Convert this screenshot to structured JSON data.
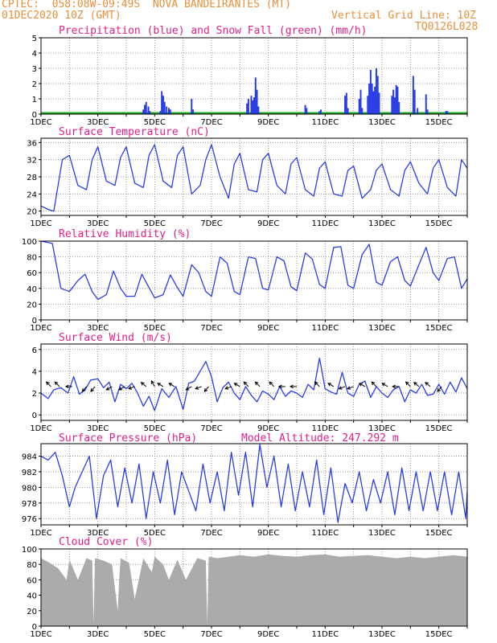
{
  "header": {
    "line1": "CPTEC:  058:08W-09:49S  NOVA BANDEIRANTES (MT)",
    "line2": "01DEC2020 10Z (GMT)",
    "grid_note": "Vertical Grid Line: 10Z",
    "code": "TQ0126L028"
  },
  "colors": {
    "header_text": "#e8903a",
    "panel_title": "#e0208a",
    "series_blue": "#2a3ee8",
    "snow_green": "#1fa81f",
    "cloud_gray": "#ababab",
    "grid": "#808080"
  },
  "x_tick_labels": [
    "1DEC",
    "3DEC",
    "5DEC",
    "7DEC",
    "9DEC",
    "11DEC",
    "13DEC",
    "15DEC"
  ],
  "x_tick_days": [
    1,
    3,
    5,
    7,
    9,
    11,
    13,
    15
  ],
  "chart_data": [
    {
      "type": "bar",
      "title": "Precipitation (blue) and Snow Fall (green) (mm/h)",
      "ylim": [
        0,
        5
      ],
      "yticks": [
        0,
        1,
        2,
        3,
        4,
        5
      ],
      "xlim_days": [
        1,
        16
      ],
      "series": [
        {
          "name": "Precipitation",
          "color": "blue",
          "points": [
            [
              4.6,
              0.3
            ],
            [
              4.65,
              0.6
            ],
            [
              4.7,
              0.8
            ],
            [
              4.78,
              0.5
            ],
            [
              4.83,
              0.2
            ],
            [
              5.2,
              0.2
            ],
            [
              5.25,
              1.5
            ],
            [
              5.3,
              1.2
            ],
            [
              5.35,
              0.8
            ],
            [
              5.42,
              0.5
            ],
            [
              5.5,
              0.4
            ],
            [
              5.55,
              0.3
            ],
            [
              6.3,
              1.0
            ],
            [
              6.35,
              0.3
            ],
            [
              8.25,
              0.7
            ],
            [
              8.3,
              1.0
            ],
            [
              8.4,
              1.2
            ],
            [
              8.45,
              0.9
            ],
            [
              8.5,
              1.1
            ],
            [
              8.55,
              2.4
            ],
            [
              8.6,
              1.6
            ],
            [
              8.65,
              0.5
            ],
            [
              10.3,
              0.6
            ],
            [
              10.35,
              0.4
            ],
            [
              10.8,
              0.2
            ],
            [
              10.85,
              0.3
            ],
            [
              11.7,
              1.2
            ],
            [
              11.75,
              1.4
            ],
            [
              11.8,
              0.4
            ],
            [
              12.2,
              1.0
            ],
            [
              12.25,
              1.6
            ],
            [
              12.3,
              0.4
            ],
            [
              12.5,
              1.2
            ],
            [
              12.55,
              2.0
            ],
            [
              12.6,
              2.9
            ],
            [
              12.65,
              2.0
            ],
            [
              12.7,
              1.5
            ],
            [
              12.75,
              1.8
            ],
            [
              12.8,
              3.0
            ],
            [
              12.85,
              2.5
            ],
            [
              12.9,
              1.4
            ],
            [
              13.35,
              1.2
            ],
            [
              13.4,
              1.6
            ],
            [
              13.45,
              1.1
            ],
            [
              13.5,
              1.9
            ],
            [
              13.55,
              1.8
            ],
            [
              13.6,
              0.8
            ],
            [
              14.1,
              2.5
            ],
            [
              14.15,
              1.6
            ],
            [
              14.25,
              0.4
            ],
            [
              14.55,
              1.3
            ],
            [
              14.6,
              0.3
            ],
            [
              15.25,
              0.2
            ],
            [
              15.3,
              0.2
            ]
          ]
        },
        {
          "name": "Snow Fall",
          "color": "green",
          "values": "0 throughout"
        }
      ]
    },
    {
      "type": "line",
      "title": "Surface Temperature (nC)",
      "ylim": [
        19,
        37
      ],
      "yticks": [
        20,
        24,
        28,
        32,
        36
      ],
      "x_days": [
        1.0,
        1.25,
        1.45,
        1.75,
        2.0,
        2.3,
        2.6,
        2.8,
        3.0,
        3.3,
        3.6,
        3.8,
        4.0,
        4.3,
        4.6,
        4.8,
        5.0,
        5.3,
        5.6,
        5.8,
        6.0,
        6.3,
        6.6,
        6.8,
        7.0,
        7.3,
        7.6,
        7.8,
        8.0,
        8.3,
        8.6,
        8.8,
        9.0,
        9.3,
        9.6,
        9.8,
        10.0,
        10.3,
        10.6,
        10.8,
        11.0,
        11.3,
        11.6,
        11.8,
        12.0,
        12.3,
        12.6,
        12.8,
        13.0,
        13.3,
        13.6,
        13.8,
        14.0,
        14.3,
        14.6,
        14.8,
        15.0,
        15.3,
        15.6,
        15.8,
        16.0
      ],
      "y": [
        21.2,
        20.4,
        20.0,
        32.0,
        33.0,
        26.0,
        25.0,
        32.0,
        35.0,
        27.0,
        26.0,
        32.5,
        35.0,
        26.5,
        25.5,
        33.0,
        35.5,
        27.0,
        25.5,
        33.0,
        35.0,
        24.0,
        26.0,
        32.0,
        35.5,
        28.0,
        23.0,
        31.0,
        33.5,
        25.0,
        24.5,
        32.0,
        33.5,
        26.0,
        24.0,
        31.0,
        32.5,
        25.0,
        23.5,
        30.0,
        31.5,
        24.0,
        23.5,
        29.5,
        30.5,
        23.0,
        25.0,
        29.5,
        31.0,
        25.0,
        23.5,
        29.5,
        31.5,
        26.5,
        24.0,
        30.0,
        32.0,
        25.5,
        23.5,
        32.0,
        30.0
      ]
    },
    {
      "type": "line",
      "title": "Relative Humidity (%)",
      "ylim": [
        0,
        100
      ],
      "yticks": [
        0,
        20,
        40,
        60,
        80,
        100
      ],
      "x_days": [
        1.0,
        1.4,
        1.7,
        2.0,
        2.3,
        2.55,
        2.8,
        3.0,
        3.3,
        3.55,
        3.8,
        4.0,
        4.3,
        4.55,
        4.8,
        5.0,
        5.3,
        5.55,
        5.8,
        6.0,
        6.3,
        6.55,
        6.8,
        7.0,
        7.3,
        7.55,
        7.8,
        8.0,
        8.3,
        8.55,
        8.8,
        9.0,
        9.3,
        9.55,
        9.8,
        10.0,
        10.3,
        10.55,
        10.8,
        11.0,
        11.3,
        11.55,
        11.8,
        12.0,
        12.3,
        12.55,
        12.8,
        13.0,
        13.3,
        13.55,
        13.8,
        14.0,
        14.3,
        14.55,
        14.8,
        15.0,
        15.3,
        15.55,
        15.8,
        16.0
      ],
      "y": [
        100,
        97,
        40,
        36,
        50,
        58,
        36,
        26,
        32,
        62,
        40,
        30,
        30,
        58,
        41,
        28,
        32,
        57,
        41,
        30,
        70,
        60,
        36,
        30,
        80,
        72,
        36,
        32,
        80,
        78,
        40,
        38,
        80,
        75,
        42,
        37,
        85,
        77,
        45,
        40,
        92,
        93,
        44,
        40,
        83,
        96,
        48,
        44,
        74,
        80,
        50,
        43,
        70,
        92,
        60,
        50,
        78,
        80,
        40,
        52
      ]
    },
    {
      "type": "line",
      "title": "Surface Wind (m/s)",
      "ylim": [
        -0.5,
        6.5
      ],
      "yticks": [
        0,
        2,
        4,
        6
      ],
      "x_days": [
        1.0,
        1.25,
        1.45,
        1.7,
        1.95,
        2.15,
        2.35,
        2.55,
        2.75,
        3.0,
        3.2,
        3.4,
        3.6,
        3.8,
        4.0,
        4.2,
        4.4,
        4.6,
        4.8,
        5.0,
        5.25,
        5.5,
        5.75,
        6.0,
        6.2,
        6.4,
        6.6,
        6.8,
        7.0,
        7.2,
        7.4,
        7.6,
        7.8,
        8.0,
        8.2,
        8.4,
        8.6,
        8.8,
        9.0,
        9.2,
        9.4,
        9.6,
        9.8,
        10.0,
        10.2,
        10.4,
        10.6,
        10.8,
        11.0,
        11.2,
        11.4,
        11.6,
        11.8,
        12.0,
        12.2,
        12.4,
        12.6,
        12.8,
        13.0,
        13.2,
        13.4,
        13.6,
        13.8,
        14.0,
        14.2,
        14.4,
        14.6,
        14.8,
        15.0,
        15.2,
        15.4,
        15.6,
        15.8,
        16.0
      ],
      "y": [
        2.0,
        1.5,
        2.3,
        2.5,
        2.0,
        3.5,
        1.9,
        2.3,
        3.2,
        3.3,
        2.5,
        3.0,
        1.2,
        2.8,
        2.4,
        2.9,
        2.0,
        0.8,
        1.7,
        0.4,
        2.4,
        1.6,
        2.6,
        0.5,
        2.9,
        3.1,
        4.0,
        4.9,
        3.5,
        1.2,
        2.5,
        3.0,
        2.0,
        1.4,
        2.6,
        1.8,
        1.2,
        2.2,
        1.9,
        1.4,
        2.6,
        1.7,
        2.2,
        2.0,
        1.6,
        2.8,
        2.3,
        5.2,
        2.4,
        2.1,
        1.9,
        3.9,
        2.0,
        1.7,
        2.8,
        3.1,
        1.6,
        2.6,
        2.0,
        1.6,
        2.3,
        2.6,
        1.2,
        2.3,
        2.0,
        2.8,
        1.8,
        1.9,
        2.8,
        1.9,
        3.0,
        2.1,
        3.4,
        2.4
      ],
      "vectors": [
        [
          1.35,
          135
        ],
        [
          1.65,
          135
        ],
        [
          2.1,
          180
        ],
        [
          2.6,
          230
        ],
        [
          2.9,
          230
        ],
        [
          3.5,
          210
        ],
        [
          3.95,
          210
        ],
        [
          4.3,
          200
        ],
        [
          4.7,
          140
        ],
        [
          5.0,
          120
        ],
        [
          5.3,
          150
        ],
        [
          5.7,
          150
        ],
        [
          6.3,
          210
        ],
        [
          6.65,
          200
        ],
        [
          6.9,
          230
        ],
        [
          7.7,
          200
        ],
        [
          8.0,
          150
        ],
        [
          8.3,
          135
        ],
        [
          8.7,
          135
        ],
        [
          9.2,
          135
        ],
        [
          9.6,
          180
        ],
        [
          10.0,
          180
        ],
        [
          10.8,
          135
        ],
        [
          11.3,
          150
        ],
        [
          11.7,
          200
        ],
        [
          12.0,
          200
        ],
        [
          12.4,
          150
        ],
        [
          12.8,
          135
        ],
        [
          13.2,
          150
        ],
        [
          13.6,
          180
        ],
        [
          14.0,
          135
        ],
        [
          14.3,
          140
        ],
        [
          14.7,
          140
        ],
        [
          15.1,
          230
        ]
      ]
    },
    {
      "type": "line",
      "title": "Surface Pressure (hPa)",
      "annotation": "Model Altitude: 247.292 m",
      "ylim": [
        975.2,
        985.6
      ],
      "yticks": [
        976,
        978,
        980,
        982,
        984
      ],
      "x_days": [
        1.0,
        1.25,
        1.5,
        1.75,
        2.0,
        2.2,
        2.45,
        2.7,
        2.95,
        3.2,
        3.45,
        3.7,
        3.95,
        4.2,
        4.45,
        4.7,
        4.95,
        5.2,
        5.45,
        5.7,
        5.95,
        6.2,
        6.45,
        6.7,
        6.95,
        7.2,
        7.45,
        7.7,
        7.95,
        8.2,
        8.45,
        8.7,
        8.95,
        9.2,
        9.45,
        9.7,
        9.95,
        10.2,
        10.45,
        10.7,
        10.95,
        11.2,
        11.45,
        11.7,
        11.95,
        12.2,
        12.45,
        12.7,
        12.95,
        13.2,
        13.45,
        13.7,
        13.95,
        14.2,
        14.45,
        14.7,
        14.95,
        15.2,
        15.45,
        15.7,
        15.95,
        16.0
      ],
      "y": [
        984.0,
        983.5,
        984.5,
        981.5,
        977.5,
        980.0,
        982.0,
        984.0,
        976.0,
        981.5,
        983.5,
        977.5,
        982.5,
        978.0,
        983.0,
        976.0,
        982.0,
        978.0,
        983.5,
        976.5,
        982.0,
        979.5,
        977.0,
        983.0,
        978.0,
        982.0,
        977.0,
        984.5,
        979.0,
        984.5,
        977.5,
        985.5,
        980.0,
        984.0,
        977.5,
        983.0,
        977.0,
        982.0,
        977.5,
        983.5,
        976.5,
        982.5,
        975.5,
        980.5,
        978.0,
        982.0,
        977.0,
        981.0,
        978.0,
        982.0,
        976.5,
        982.5,
        977.0,
        982.0,
        977.0,
        982.0,
        977.0,
        982.0,
        976.5,
        982.0,
        976.0,
        979.5
      ]
    },
    {
      "type": "area",
      "title": "Cloud Cover (%)",
      "ylim": [
        0,
        100
      ],
      "yticks": [
        0,
        20,
        40,
        60,
        80,
        100
      ],
      "x_days": [
        1.0,
        1.3,
        1.6,
        1.9,
        2.0,
        2.3,
        2.6,
        2.8,
        2.85,
        2.9,
        3.2,
        3.5,
        3.7,
        3.75,
        3.8,
        4.1,
        4.3,
        4.6,
        4.9,
        5.0,
        5.3,
        5.5,
        5.8,
        6.1,
        6.5,
        6.8,
        6.85,
        6.9,
        7.2,
        7.6,
        8.0,
        8.5,
        9.0,
        9.5,
        10.0,
        10.5,
        11.0,
        11.5,
        12.0,
        12.5,
        13.0,
        13.5,
        14.0,
        14.5,
        15.0,
        15.5,
        16.0
      ],
      "y": [
        88,
        82,
        75,
        60,
        86,
        60,
        88,
        85,
        3,
        88,
        85,
        80,
        20,
        60,
        88,
        82,
        35,
        88,
        70,
        90,
        80,
        60,
        86,
        60,
        88,
        85,
        3,
        90,
        88,
        90,
        92,
        90,
        93,
        91,
        90,
        92,
        93,
        90,
        91,
        92,
        90,
        88,
        90,
        88,
        90,
        92,
        90
      ]
    }
  ]
}
